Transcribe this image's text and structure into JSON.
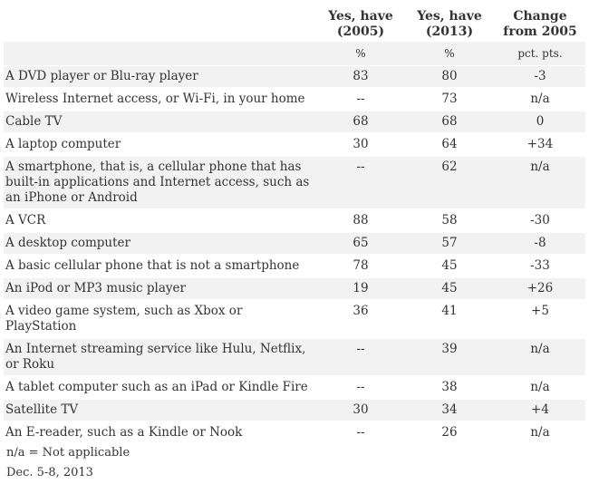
{
  "chart_data": {
    "type": "table",
    "columns": [
      {
        "line1": "Yes, have",
        "line2": "(2005)",
        "unit": "%"
      },
      {
        "line1": "Yes, have",
        "line2": "(2013)",
        "unit": "%"
      },
      {
        "line1": "Change",
        "line2": "from 2005",
        "unit": "pct. pts."
      }
    ],
    "rows": [
      {
        "label": "A DVD player or Blu-ray player",
        "y2005": "83",
        "y2013": "80",
        "change": "-3"
      },
      {
        "label": "Wireless Internet access, or Wi-Fi, in your home",
        "y2005": "--",
        "y2013": "73",
        "change": "n/a"
      },
      {
        "label": "Cable TV",
        "y2005": "68",
        "y2013": "68",
        "change": "0"
      },
      {
        "label": "A laptop computer",
        "y2005": "30",
        "y2013": "64",
        "change": "+34"
      },
      {
        "label": "A smartphone, that is, a cellular phone that has built-in applications and Internet access, such as an iPhone or Android",
        "y2005": "--",
        "y2013": "62",
        "change": "n/a"
      },
      {
        "label": "A VCR",
        "y2005": "88",
        "y2013": "58",
        "change": "-30"
      },
      {
        "label": "A desktop computer",
        "y2005": "65",
        "y2013": "57",
        "change": "-8"
      },
      {
        "label": "A basic cellular phone that is not a smartphone",
        "y2005": "78",
        "y2013": "45",
        "change": "-33"
      },
      {
        "label": "An iPod or MP3 music player",
        "y2005": "19",
        "y2013": "45",
        "change": "+26"
      },
      {
        "label": "A video game system, such as Xbox or PlayStation",
        "y2005": "36",
        "y2013": "41",
        "change": "+5"
      },
      {
        "label": "An Internet streaming service like Hulu, Netflix, or Roku",
        "y2005": "--",
        "y2013": "39",
        "change": "n/a"
      },
      {
        "label": "A tablet computer such as an iPad or Kindle Fire",
        "y2005": "--",
        "y2013": "38",
        "change": "n/a"
      },
      {
        "label": "Satellite TV",
        "y2005": "30",
        "y2013": "34",
        "change": "+4"
      },
      {
        "label": "An E-reader, such as a Kindle or Nook",
        "y2005": "--",
        "y2013": "26",
        "change": "n/a"
      }
    ]
  },
  "footnotes": {
    "note": "n/a = Not applicable",
    "date": "Dec. 5-8, 2013"
  }
}
